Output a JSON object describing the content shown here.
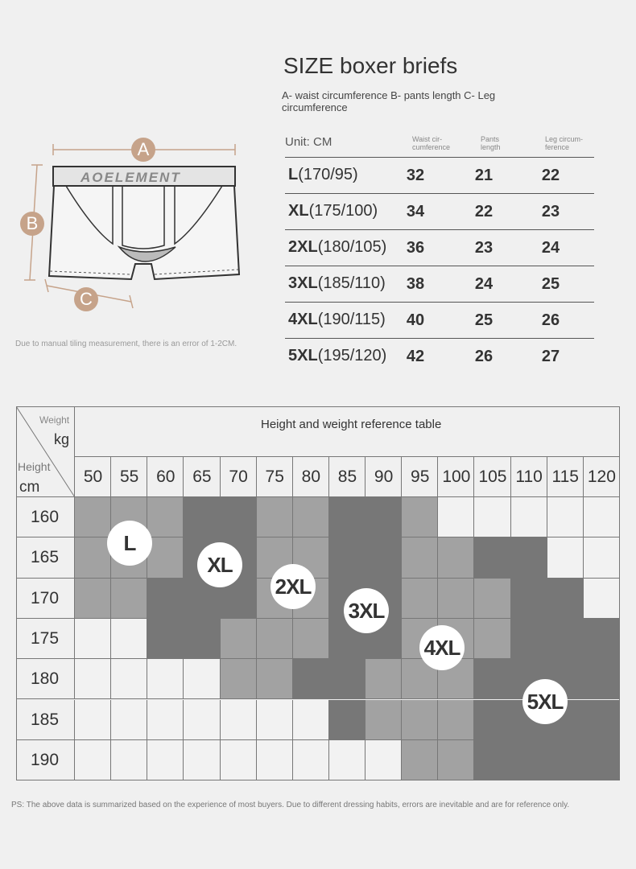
{
  "diagram": {
    "brand": "AOELEMENT",
    "labels": {
      "a": "A",
      "b": "B",
      "c": "C"
    },
    "note": "Due to manual tiling measurement, there is an error of 1-2CM."
  },
  "size_chart": {
    "title": "SIZE boxer briefs",
    "subtitle": "A- waist circumference B- pants length C- Leg circumference",
    "unit": "Unit: CM",
    "columns": [
      "Waist cir-\ncumference",
      "Pants\nlength",
      "Leg circum-\nference"
    ],
    "rows": [
      {
        "size": "L",
        "spec": "(170/95)",
        "waist": "32",
        "length": "21",
        "leg": "22"
      },
      {
        "size": "XL",
        "spec": "(175/100)",
        "waist": "34",
        "length": "22",
        "leg": "23"
      },
      {
        "size": "2XL",
        "spec": "(180/105)",
        "waist": "36",
        "length": "23",
        "leg": "24"
      },
      {
        "size": "3XL",
        "spec": "(185/110)",
        "waist": "38",
        "length": "24",
        "leg": "25"
      },
      {
        "size": "4XL",
        "spec": "(190/115)",
        "waist": "40",
        "length": "25",
        "leg": "26"
      },
      {
        "size": "5XL",
        "spec": "(195/120)",
        "waist": "42",
        "length": "26",
        "leg": "27"
      }
    ]
  },
  "reference_table": {
    "title": "Height and weight reference table",
    "corner": {
      "weight": "Weight",
      "kg": "kg",
      "height": "Height",
      "cm": "cm"
    },
    "weights": [
      "50",
      "55",
      "60",
      "65",
      "70",
      "75",
      "80",
      "85",
      "90",
      "95",
      "100",
      "105",
      "110",
      "115",
      "120"
    ],
    "heights": [
      "160",
      "165",
      "170",
      "175",
      "180",
      "185",
      "190"
    ],
    "colors": {
      "w": "#f2f2f2",
      "l": "#a2a2a2",
      "d": "#777777"
    },
    "grid": [
      [
        "l",
        "l",
        "l",
        "d",
        "d",
        "l",
        "l",
        "d",
        "d",
        "l",
        "w",
        "w",
        "w",
        "w",
        "w"
      ],
      [
        "l",
        "l",
        "l",
        "d",
        "d",
        "l",
        "l",
        "d",
        "d",
        "l",
        "l",
        "d",
        "d",
        "w",
        "w"
      ],
      [
        "l",
        "l",
        "d",
        "d",
        "d",
        "l",
        "l",
        "d",
        "d",
        "l",
        "l",
        "l",
        "d",
        "d",
        "w"
      ],
      [
        "w",
        "w",
        "d",
        "d",
        "l",
        "l",
        "l",
        "d",
        "d",
        "l",
        "l",
        "l",
        "d",
        "d",
        "d"
      ],
      [
        "w",
        "w",
        "w",
        "w",
        "l",
        "l",
        "d",
        "d",
        "l",
        "l",
        "l",
        "d",
        "d",
        "d",
        "d"
      ],
      [
        "w",
        "w",
        "w",
        "w",
        "w",
        "w",
        "w",
        "d",
        "l",
        "l",
        "l",
        "d",
        "d",
        "d",
        "d"
      ],
      [
        "w",
        "w",
        "w",
        "w",
        "w",
        "w",
        "w",
        "w",
        "w",
        "l",
        "l",
        "d",
        "d",
        "d",
        "d"
      ]
    ],
    "size_markers": [
      "L",
      "XL",
      "2XL",
      "3XL",
      "4XL",
      "5XL"
    ]
  },
  "footer_note": "PS: The above data is summarized based on the experience of most buyers. Due to different dressing habits, errors are inevitable and are for reference only."
}
